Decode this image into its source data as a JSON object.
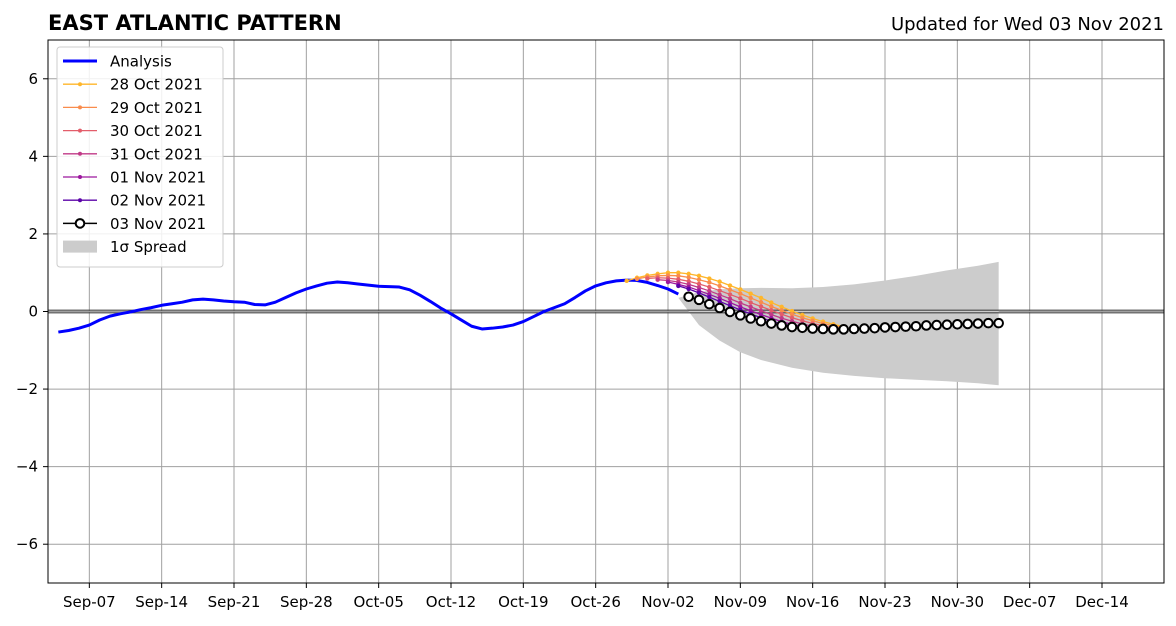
{
  "title": "EAST ATLANTIC PATTERN",
  "subtitle": "Updated for Wed 03 Nov 2021",
  "chart_data": {
    "type": "line",
    "title": "EAST ATLANTIC PATTERN",
    "subtitle": "Updated for Wed 03 Nov 2021",
    "xlabel": "",
    "ylabel": "",
    "xlim": [
      "2021-09-03",
      "2021-12-20"
    ],
    "ylim": [
      -7,
      7
    ],
    "grid": true,
    "legend_position": "top-left",
    "x_ticks": [
      "Sep-07",
      "Sep-14",
      "Sep-21",
      "Sep-28",
      "Oct-05",
      "Oct-12",
      "Oct-19",
      "Oct-26",
      "Nov-02",
      "Nov-09",
      "Nov-16",
      "Nov-23",
      "Nov-30",
      "Dec-07",
      "Dec-14"
    ],
    "x_tick_dates": [
      "2021-09-07",
      "2021-09-14",
      "2021-09-21",
      "2021-09-28",
      "2021-10-05",
      "2021-10-12",
      "2021-10-19",
      "2021-10-26",
      "2021-11-02",
      "2021-11-09",
      "2021-11-16",
      "2021-11-23",
      "2021-11-30",
      "2021-12-07",
      "2021-12-14"
    ],
    "y_ticks": [
      -6,
      -4,
      -2,
      0,
      2,
      4,
      6
    ],
    "y_tick_labels": [
      "−6",
      "−4",
      "−2",
      "0",
      "2",
      "4",
      "6"
    ],
    "zero_line": true,
    "analysis": {
      "name": "Analysis",
      "color": "#0000ff",
      "x": [
        "2021-09-04",
        "2021-09-05",
        "2021-09-06",
        "2021-09-07",
        "2021-09-08",
        "2021-09-09",
        "2021-09-10",
        "2021-09-11",
        "2021-09-12",
        "2021-09-13",
        "2021-09-14",
        "2021-09-15",
        "2021-09-16",
        "2021-09-17",
        "2021-09-18",
        "2021-09-19",
        "2021-09-20",
        "2021-09-21",
        "2021-09-22",
        "2021-09-23",
        "2021-09-24",
        "2021-09-25",
        "2021-09-26",
        "2021-09-27",
        "2021-09-28",
        "2021-09-29",
        "2021-09-30",
        "2021-10-01",
        "2021-10-02",
        "2021-10-03",
        "2021-10-04",
        "2021-10-05",
        "2021-10-06",
        "2021-10-07",
        "2021-10-08",
        "2021-10-09",
        "2021-10-10",
        "2021-10-11",
        "2021-10-12",
        "2021-10-13",
        "2021-10-14",
        "2021-10-15",
        "2021-10-16",
        "2021-10-17",
        "2021-10-18",
        "2021-10-19",
        "2021-10-20",
        "2021-10-21",
        "2021-10-22",
        "2021-10-23",
        "2021-10-24",
        "2021-10-25",
        "2021-10-26",
        "2021-10-27",
        "2021-10-28",
        "2021-10-29",
        "2021-10-30",
        "2021-10-31",
        "2021-11-01",
        "2021-11-02",
        "2021-11-03"
      ],
      "y": [
        -0.53,
        -0.49,
        -0.43,
        -0.35,
        -0.22,
        -0.12,
        -0.06,
        -0.01,
        0.05,
        0.1,
        0.16,
        0.2,
        0.24,
        0.3,
        0.32,
        0.3,
        0.27,
        0.25,
        0.24,
        0.18,
        0.17,
        0.24,
        0.36,
        0.48,
        0.58,
        0.66,
        0.73,
        0.76,
        0.74,
        0.71,
        0.68,
        0.65,
        0.64,
        0.63,
        0.56,
        0.42,
        0.26,
        0.09,
        -0.06,
        -0.22,
        -0.38,
        -0.45,
        -0.43,
        -0.4,
        -0.35,
        -0.26,
        -0.13,
        0.0,
        0.1,
        0.2,
        0.36,
        0.53,
        0.66,
        0.74,
        0.79,
        0.81,
        0.8,
        0.75,
        0.67,
        0.58,
        0.45
      ]
    },
    "series": [
      {
        "name": "28 Oct 2021",
        "color": "#ffb62a",
        "start": "2021-10-29",
        "values": [
          0.79,
          0.87,
          0.93,
          0.97,
          1.0,
          1.0,
          0.97,
          0.92,
          0.85,
          0.77,
          0.67,
          0.57,
          0.46,
          0.35,
          0.23,
          0.12,
          0.01,
          -0.09,
          -0.18,
          -0.26,
          -0.33,
          -0.39
        ]
      },
      {
        "name": "29 Oct 2021",
        "color": "#f98c4c",
        "start": "2021-10-30",
        "values": [
          0.84,
          0.89,
          0.92,
          0.93,
          0.92,
          0.88,
          0.82,
          0.75,
          0.66,
          0.56,
          0.46,
          0.35,
          0.24,
          0.13,
          0.03,
          -0.07,
          -0.16,
          -0.24,
          -0.31,
          -0.37,
          -0.41
        ]
      },
      {
        "name": "30 Oct 2021",
        "color": "#e35d6a",
        "start": "2021-10-31",
        "values": [
          0.85,
          0.87,
          0.86,
          0.83,
          0.78,
          0.71,
          0.63,
          0.54,
          0.44,
          0.34,
          0.23,
          0.13,
          0.03,
          -0.07,
          -0.16,
          -0.24,
          -0.31,
          -0.37,
          -0.42,
          -0.45
        ]
      },
      {
        "name": "31 Oct 2021",
        "color": "#c13a87",
        "start": "2021-11-01",
        "values": [
          0.82,
          0.8,
          0.76,
          0.7,
          0.62,
          0.53,
          0.43,
          0.33,
          0.22,
          0.12,
          0.02,
          -0.08,
          -0.17,
          -0.25,
          -0.32,
          -0.38,
          -0.42,
          -0.45,
          -0.46
        ]
      },
      {
        "name": "01 Nov 2021",
        "color": "#9c179e",
        "start": "2021-11-02",
        "values": [
          0.76,
          0.7,
          0.63,
          0.54,
          0.44,
          0.34,
          0.23,
          0.12,
          0.02,
          -0.08,
          -0.17,
          -0.26,
          -0.33,
          -0.39,
          -0.43,
          -0.46,
          -0.47,
          -0.47
        ]
      },
      {
        "name": "02 Nov 2021",
        "color": "#5b03a8",
        "start": "2021-11-03",
        "values": [
          0.66,
          0.58,
          0.48,
          0.37,
          0.26,
          0.15,
          0.04,
          -0.06,
          -0.16,
          -0.25,
          -0.32,
          -0.38,
          -0.43,
          -0.46,
          -0.48,
          -0.48
        ]
      },
      {
        "name": "03 Nov 2021",
        "color": "#000000",
        "marker_fill": "#ffffff",
        "start": "2021-11-04",
        "values": [
          0.38,
          0.3,
          0.19,
          0.09,
          -0.01,
          -0.1,
          -0.18,
          -0.25,
          -0.31,
          -0.36,
          -0.4,
          -0.42,
          -0.44,
          -0.45,
          -0.46,
          -0.46,
          -0.45,
          -0.44,
          -0.43,
          -0.41,
          -0.4,
          -0.39,
          -0.38,
          -0.36,
          -0.35,
          -0.34,
          -0.33,
          -0.32,
          -0.31,
          -0.3,
          -0.3
        ]
      }
    ],
    "spread": {
      "name": "1σ Spread",
      "color": "#cccccc",
      "x": [
        "2021-11-03",
        "2021-11-05",
        "2021-11-07",
        "2021-11-09",
        "2021-11-11",
        "2021-11-14",
        "2021-11-17",
        "2021-11-20",
        "2021-11-23",
        "2021-11-26",
        "2021-11-29",
        "2021-12-02",
        "2021-12-04"
      ],
      "upper": [
        0.35,
        0.5,
        0.57,
        0.6,
        0.61,
        0.6,
        0.63,
        0.7,
        0.8,
        0.92,
        1.06,
        1.18,
        1.28
      ],
      "lower": [
        0.35,
        -0.35,
        -0.75,
        -1.05,
        -1.25,
        -1.45,
        -1.58,
        -1.66,
        -1.72,
        -1.76,
        -1.8,
        -1.85,
        -1.9
      ]
    },
    "legend": [
      {
        "label": "Analysis",
        "kind": "thick-line",
        "color": "#0000ff"
      },
      {
        "label": "28 Oct 2021",
        "kind": "line-marker",
        "color": "#ffb62a"
      },
      {
        "label": "29 Oct 2021",
        "kind": "line-marker",
        "color": "#f98c4c"
      },
      {
        "label": "30 Oct 2021",
        "kind": "line-marker",
        "color": "#e35d6a"
      },
      {
        "label": "31 Oct 2021",
        "kind": "line-marker",
        "color": "#c13a87"
      },
      {
        "label": "01 Nov 2021",
        "kind": "line-marker",
        "color": "#9c179e"
      },
      {
        "label": "02 Nov 2021",
        "kind": "line-marker",
        "color": "#5b03a8"
      },
      {
        "label": "03 Nov 2021",
        "kind": "open-marker",
        "color": "#000000"
      },
      {
        "label": "1σ Spread",
        "kind": "patch",
        "color": "#cccccc"
      }
    ]
  }
}
